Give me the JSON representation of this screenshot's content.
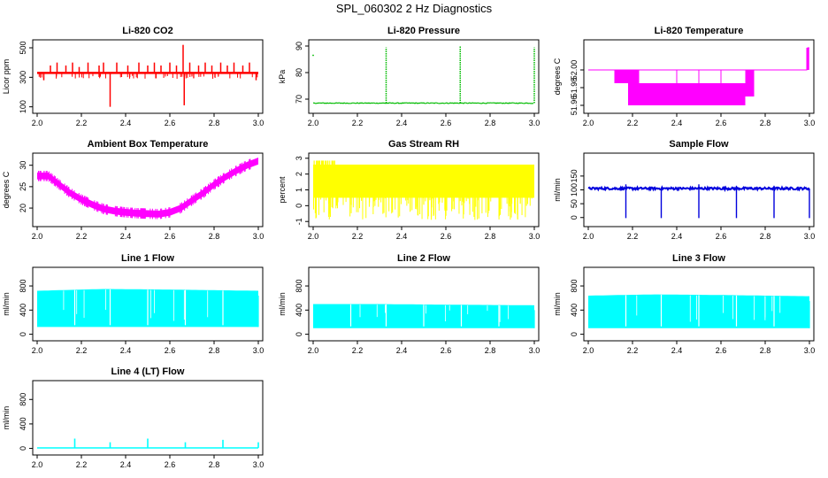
{
  "page": {
    "title": "SPL_060302  2 Hz Diagnostics"
  },
  "chart_data": [
    {
      "id": "co2",
      "type": "line",
      "title": "Li-820 CO2",
      "ylabel": "Licor ppm",
      "xlim": [
        2.0,
        3.0
      ],
      "ylim": [
        80,
        530
      ],
      "xticks": [
        2.0,
        2.2,
        2.4,
        2.6,
        2.8,
        3.0
      ],
      "xtick_labels": [
        "2.0",
        "2.2",
        "2.4",
        "2.6",
        "2.8",
        "3.0"
      ],
      "yticks": [
        100,
        300,
        500
      ],
      "ytick_labels": [
        "100",
        "300",
        "500"
      ],
      "color": "#ff0000",
      "baseline": 330,
      "spikes": [
        [
          2.03,
          280
        ],
        [
          2.06,
          380
        ],
        [
          2.09,
          400
        ],
        [
          2.13,
          380
        ],
        [
          2.16,
          400
        ],
        [
          2.19,
          370
        ],
        [
          2.23,
          400
        ],
        [
          2.28,
          380
        ],
        [
          2.3,
          400
        ],
        [
          2.33,
          100
        ],
        [
          2.36,
          400
        ],
        [
          2.41,
          380
        ],
        [
          2.46,
          400
        ],
        [
          2.5,
          380
        ],
        [
          2.53,
          400
        ],
        [
          2.56,
          380
        ],
        [
          2.6,
          400
        ],
        [
          2.63,
          380
        ],
        [
          2.66,
          520
        ],
        [
          2.665,
          110
        ],
        [
          2.69,
          400
        ],
        [
          2.73,
          380
        ],
        [
          2.76,
          400
        ],
        [
          2.79,
          380
        ],
        [
          2.83,
          400
        ],
        [
          2.86,
          380
        ],
        [
          2.89,
          400
        ],
        [
          2.93,
          380
        ],
        [
          2.96,
          400
        ],
        [
          2.99,
          280
        ]
      ]
    },
    {
      "id": "pressure",
      "type": "line",
      "title": "Li-820 Pressure",
      "ylabel": "kPa",
      "xlim": [
        2.0,
        3.0
      ],
      "ylim": [
        66,
        91
      ],
      "xticks": [
        2.0,
        2.2,
        2.4,
        2.6,
        2.8,
        3.0
      ],
      "xtick_labels": [
        "2.0",
        "2.2",
        "2.4",
        "2.6",
        "2.8",
        "3.0"
      ],
      "yticks": [
        70,
        80,
        90
      ],
      "ytick_labels": [
        "70",
        "80",
        "90"
      ],
      "color": "#00bb00",
      "baseline": 68.5,
      "spikes": [
        [
          2.33,
          89.5
        ],
        [
          2.665,
          90
        ],
        [
          3.0,
          89.5
        ]
      ],
      "points": [
        [
          2.0,
          86.5
        ]
      ]
    },
    {
      "id": "temperature",
      "type": "step",
      "title": "Li-820 Temperature",
      "ylabel": "degrees C",
      "xlim": [
        2.0,
        3.0
      ],
      "ylim": [
        51.955,
        52.03
      ],
      "xticks": [
        2.0,
        2.2,
        2.4,
        2.6,
        2.8,
        3.0
      ],
      "xtick_labels": [
        "2.0",
        "2.2",
        "2.4",
        "2.6",
        "2.8",
        "3.0"
      ],
      "yticks": [
        51.96,
        51.98,
        52.0
      ],
      "ytick_labels": [
        "51.96",
        "51.98",
        "52.00"
      ],
      "color": "#ff00ff",
      "baseline": 52.0,
      "bands": [
        [
          2.12,
          2.18,
          51.985,
          52.0
        ],
        [
          2.18,
          2.23,
          51.96,
          52.0
        ],
        [
          2.23,
          2.32,
          51.96,
          51.985
        ],
        [
          2.32,
          2.71,
          51.96,
          51.985
        ],
        [
          2.71,
          2.75,
          51.97,
          52.0
        ]
      ],
      "spikes": [
        [
          2.99,
          52.025
        ],
        [
          2.995,
          52.025
        ]
      ]
    },
    {
      "id": "ambient",
      "type": "line",
      "title": "Ambient Box Temperature",
      "ylabel": "degrees C",
      "xlim": [
        2.0,
        3.0
      ],
      "ylim": [
        16.5,
        32
      ],
      "xticks": [
        2.0,
        2.2,
        2.4,
        2.6,
        2.8,
        3.0
      ],
      "xtick_labels": [
        "2.0",
        "2.2",
        "2.4",
        "2.6",
        "2.8",
        "3.0"
      ],
      "yticks": [
        20,
        25,
        30
      ],
      "ytick_labels": [
        "20",
        "25",
        "30"
      ],
      "color": "#ff00ff",
      "series": [
        {
          "x": [
            2.0,
            2.05,
            2.1,
            2.15,
            2.2,
            2.25,
            2.3,
            2.35,
            2.4,
            2.45,
            2.5,
            2.55,
            2.6,
            2.65,
            2.7,
            2.75,
            2.8,
            2.85,
            2.9,
            2.95,
            3.0
          ],
          "y": [
            27.5,
            27.5,
            25.5,
            23.5,
            22,
            20.8,
            19.8,
            19.3,
            19,
            18.8,
            18.7,
            18.6,
            19,
            20,
            21.8,
            23.5,
            25.5,
            27.2,
            28.7,
            30,
            31
          ]
        }
      ]
    },
    {
      "id": "rh",
      "type": "line",
      "title": "Gas Stream RH",
      "ylabel": "percent",
      "xlim": [
        2.0,
        3.0
      ],
      "ylim": [
        -1.1,
        3.1
      ],
      "xticks": [
        2.0,
        2.2,
        2.4,
        2.6,
        2.8,
        3.0
      ],
      "xtick_labels": [
        "2.0",
        "2.2",
        "2.4",
        "2.6",
        "2.8",
        "3.0"
      ],
      "yticks": [
        -1,
        0,
        1,
        2,
        3
      ],
      "ytick_labels": [
        "-1",
        "0",
        "1",
        "2",
        "3"
      ],
      "color": "#ffff00",
      "range": [
        0.4,
        2.5
      ]
    },
    {
      "id": "sample",
      "type": "line",
      "title": "Sample Flow",
      "ylabel": "ml/min",
      "xlim": [
        2.0,
        3.0
      ],
      "ylim": [
        -20,
        220
      ],
      "xticks": [
        2.0,
        2.2,
        2.4,
        2.6,
        2.8,
        3.0
      ],
      "xtick_labels": [
        "2.0",
        "2.2",
        "2.4",
        "2.6",
        "2.8",
        "3.0"
      ],
      "yticks": [
        0,
        50,
        100,
        150
      ],
      "ytick_labels": [
        "0",
        "50",
        "100",
        "150"
      ],
      "color": "#0000dd",
      "baseline": 105,
      "dips": [
        2.17,
        2.33,
        2.5,
        2.67,
        2.84,
        3.0
      ],
      "spikes": [
        [
          2.17,
          120
        ],
        [
          2.5,
          120
        ],
        [
          2.67,
          115
        ],
        [
          2.84,
          115
        ]
      ]
    },
    {
      "id": "line1",
      "type": "line",
      "title": "Line 1 Flow",
      "ylabel": "ml/min",
      "xlim": [
        2.0,
        3.0
      ],
      "ylim": [
        -50,
        1050
      ],
      "xticks": [
        2.0,
        2.2,
        2.4,
        2.6,
        2.8,
        3.0
      ],
      "xtick_labels": [
        "2.0",
        "2.2",
        "2.4",
        "2.6",
        "2.8",
        "3.0"
      ],
      "yticks": [
        0,
        400,
        800
      ],
      "ytick_labels": [
        "0",
        "400",
        "800"
      ],
      "color": "#00ffff",
      "low": 120,
      "high": [
        [
          2.0,
          720
        ],
        [
          2.3,
          750
        ],
        [
          2.6,
          740
        ],
        [
          3.0,
          720
        ]
      ],
      "gaps": [
        2.17,
        2.33,
        2.5,
        2.67,
        2.84
      ]
    },
    {
      "id": "line2",
      "type": "line",
      "title": "Line 2 Flow",
      "ylabel": "ml/min",
      "xlim": [
        2.0,
        3.0
      ],
      "ylim": [
        -50,
        1050
      ],
      "xticks": [
        2.0,
        2.2,
        2.4,
        2.6,
        2.8,
        3.0
      ],
      "xtick_labels": [
        "2.0",
        "2.2",
        "2.4",
        "2.6",
        "2.8",
        "3.0"
      ],
      "yticks": [
        0,
        400,
        800
      ],
      "ytick_labels": [
        "0",
        "400",
        "800"
      ],
      "color": "#00ffff",
      "low": 100,
      "high": [
        [
          2.0,
          500
        ],
        [
          2.3,
          500
        ],
        [
          2.6,
          490
        ],
        [
          3.0,
          480
        ]
      ],
      "gaps": [
        2.17,
        2.33,
        2.5,
        2.67,
        2.84
      ]
    },
    {
      "id": "line3",
      "type": "line",
      "title": "Line 3 Flow",
      "ylabel": "ml/min",
      "xlim": [
        2.0,
        3.0
      ],
      "ylim": [
        -50,
        1050
      ],
      "xticks": [
        2.0,
        2.2,
        2.4,
        2.6,
        2.8,
        3.0
      ],
      "xtick_labels": [
        "2.0",
        "2.2",
        "2.4",
        "2.6",
        "2.8",
        "3.0"
      ],
      "yticks": [
        0,
        400,
        800
      ],
      "ytick_labels": [
        "0",
        "400",
        "800"
      ],
      "color": "#00ffff",
      "low": 100,
      "high": [
        [
          2.0,
          640
        ],
        [
          2.3,
          660
        ],
        [
          2.6,
          650
        ],
        [
          3.0,
          630
        ]
      ],
      "gaps": [
        2.17,
        2.33,
        2.5,
        2.67,
        2.84
      ]
    },
    {
      "id": "line4",
      "type": "line",
      "title": "Line 4 (LT) Flow",
      "ylabel": "ml/min",
      "xlim": [
        2.0,
        3.0
      ],
      "ylim": [
        -50,
        1050
      ],
      "xticks": [
        2.0,
        2.2,
        2.4,
        2.6,
        2.8,
        3.0
      ],
      "xtick_labels": [
        "2.0",
        "2.2",
        "2.4",
        "2.6",
        "2.8",
        "3.0"
      ],
      "yticks": [
        0,
        400,
        800
      ],
      "ytick_labels": [
        "0",
        "400",
        "800"
      ],
      "color": "#00ffff",
      "baseline": 8,
      "spikes": [
        [
          2.17,
          160
        ],
        [
          2.33,
          100
        ],
        [
          2.5,
          160
        ],
        [
          2.67,
          100
        ],
        [
          2.84,
          140
        ],
        [
          3.0,
          100
        ]
      ]
    }
  ]
}
